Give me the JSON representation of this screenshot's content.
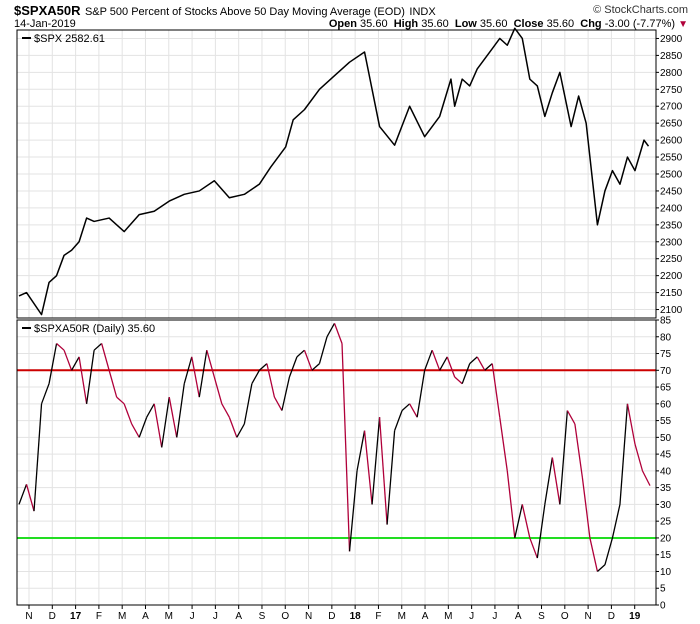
{
  "header": {
    "symbol": "$SPXA50R",
    "description": "S&P 500 Percent of Stocks Above 50 Day Moving Average (EOD)",
    "exchange": "INDX",
    "date": "14-Jan-2019",
    "brand": "© StockCharts.com",
    "open_label": "Open",
    "open": "35.60",
    "high_label": "High",
    "high": "35.60",
    "low_label": "Low",
    "low": "35.60",
    "close_label": "Close",
    "close": "35.60",
    "chg_label": "Chg",
    "chg": "-3.00 (-7.77%)",
    "chg_glyph": "▼"
  },
  "chart_data": [
    {
      "type": "line",
      "legend": "$SPX 2582.61",
      "ylim": [
        2075,
        2925
      ],
      "yticks": [
        2100,
        2150,
        2200,
        2250,
        2300,
        2350,
        2400,
        2450,
        2500,
        2550,
        2600,
        2650,
        2700,
        2750,
        2800,
        2850,
        2900
      ],
      "line_color": "#000000",
      "x_months": [
        "N",
        "D",
        "17",
        "F",
        "M",
        "A",
        "M",
        "J",
        "J",
        "A",
        "S",
        "O",
        "N",
        "D",
        "18",
        "F",
        "M",
        "A",
        "M",
        "J",
        "J",
        "A",
        "S",
        "O",
        "N",
        "D",
        "19"
      ],
      "bold_labels": [
        "17",
        "18",
        "19"
      ],
      "x": [
        0,
        1,
        3,
        4,
        5,
        6,
        7,
        8,
        9,
        10,
        12,
        14,
        16,
        18,
        20,
        22,
        24,
        26,
        28,
        30,
        32,
        33.5,
        34.5,
        35.5,
        36.5,
        38,
        40,
        42,
        44,
        46,
        48,
        50,
        52,
        54,
        56,
        57.5,
        58,
        59,
        60,
        61,
        62,
        63,
        64,
        65,
        66,
        67,
        68,
        69,
        70,
        71,
        72,
        73.5,
        74.5,
        75.5,
        77,
        78,
        79,
        80,
        81,
        82,
        83.2,
        83.8
      ],
      "values": [
        2140,
        2150,
        2085,
        2180,
        2200,
        2260,
        2275,
        2300,
        2370,
        2360,
        2370,
        2330,
        2380,
        2390,
        2420,
        2440,
        2450,
        2480,
        2430,
        2440,
        2470,
        2520,
        2550,
        2580,
        2660,
        2690,
        2750,
        2790,
        2830,
        2860,
        2640,
        2585,
        2700,
        2610,
        2670,
        2780,
        2700,
        2780,
        2760,
        2810,
        2840,
        2870,
        2900,
        2880,
        2930,
        2900,
        2780,
        2760,
        2670,
        2740,
        2800,
        2640,
        2730,
        2650,
        2350,
        2450,
        2510,
        2470,
        2550,
        2510,
        2600,
        2582
      ]
    },
    {
      "type": "line",
      "legend": "$SPXA50R (Daily) 35.60",
      "ylim": [
        0,
        85
      ],
      "yticks": [
        0,
        5,
        10,
        15,
        20,
        25,
        30,
        35,
        40,
        45,
        50,
        55,
        60,
        65,
        70,
        75,
        80,
        85
      ],
      "hlines": [
        {
          "value": 70,
          "color": "#cc0000"
        },
        {
          "value": 20,
          "color": "#22dd22"
        }
      ],
      "up_color": "#000000",
      "down_color": "#b0003a",
      "x": [
        0,
        1,
        2,
        3,
        4,
        5,
        6,
        7,
        8,
        9,
        10,
        11,
        12,
        13,
        14,
        15,
        16,
        17,
        18,
        19,
        20,
        21,
        22,
        23,
        24,
        25,
        26,
        27,
        28,
        29,
        30,
        31,
        32,
        33,
        34,
        35,
        36,
        37,
        38,
        39,
        40,
        41,
        42,
        43,
        44,
        45,
        46,
        47,
        48,
        49,
        50,
        51,
        52,
        53,
        54,
        55,
        56,
        57,
        58,
        59,
        60,
        61,
        62,
        63,
        64,
        65,
        66,
        67,
        68,
        69,
        70,
        71,
        72,
        73,
        74,
        75,
        76,
        77,
        78,
        79,
        80,
        81,
        82,
        83,
        84
      ],
      "values": [
        30,
        36,
        28,
        60,
        66,
        78,
        76,
        70,
        74,
        60,
        76,
        78,
        70,
        62,
        60,
        54,
        50,
        56,
        60,
        47,
        62,
        50,
        66,
        74,
        62,
        76,
        68,
        60,
        56,
        50,
        54,
        66,
        70,
        72,
        62,
        58,
        68,
        74,
        76,
        70,
        72,
        80,
        84,
        78,
        16,
        40,
        52,
        30,
        56,
        24,
        52,
        58,
        60,
        56,
        70,
        76,
        70,
        74,
        68,
        66,
        72,
        74,
        70,
        72,
        56,
        40,
        20,
        30,
        20,
        14,
        30,
        44,
        30,
        58,
        54,
        38,
        20,
        10,
        12,
        20,
        30,
        60,
        48,
        40,
        35.6
      ]
    }
  ]
}
